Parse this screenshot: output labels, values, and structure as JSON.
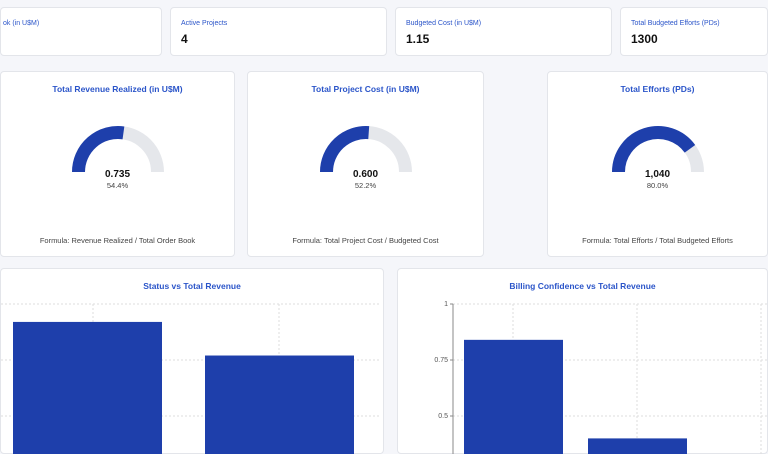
{
  "kpis": [
    {
      "label": "ok (in U$M)",
      "value": ""
    },
    {
      "label": "Active Projects",
      "value": "4"
    },
    {
      "label": "Budgeted Cost (in U$M)",
      "value": "1.15"
    },
    {
      "label": "Total Budgeted Efforts (PDs)",
      "value": "1300"
    }
  ],
  "gauges": [
    {
      "title": "Total Revenue Realized (in U$M)",
      "value": "0.735",
      "percent_label": "54.4%",
      "fraction": 0.544,
      "formula": "Formula: Revenue Realized / Total Order Book"
    },
    {
      "title": "Total Project Cost (in U$M)",
      "value": "0.600",
      "percent_label": "52.2%",
      "fraction": 0.522,
      "formula": "Formula: Total Project Cost / Budgeted Cost"
    },
    {
      "title": "Total Efforts (PDs)",
      "value": "1,040",
      "percent_label": "80.0%",
      "fraction": 0.8,
      "formula": "Formula: Total Efforts / Total Budgeted Efforts"
    }
  ],
  "colors": {
    "accent": "#1e3fab",
    "track": "#e5e7eb",
    "title": "#2b55c9"
  },
  "chart_data": [
    {
      "type": "bar",
      "title": "Status vs Total Revenue",
      "values": [
        0.92,
        0.77
      ],
      "ylim": [
        0,
        1
      ],
      "grid": true
    },
    {
      "type": "bar",
      "title": "Billing Confidence vs Total Revenue",
      "values": [
        0.84,
        0.4
      ],
      "ylim": [
        0,
        1
      ],
      "yticks": [
        "1",
        "0.75",
        "0.5"
      ],
      "grid": true
    }
  ]
}
